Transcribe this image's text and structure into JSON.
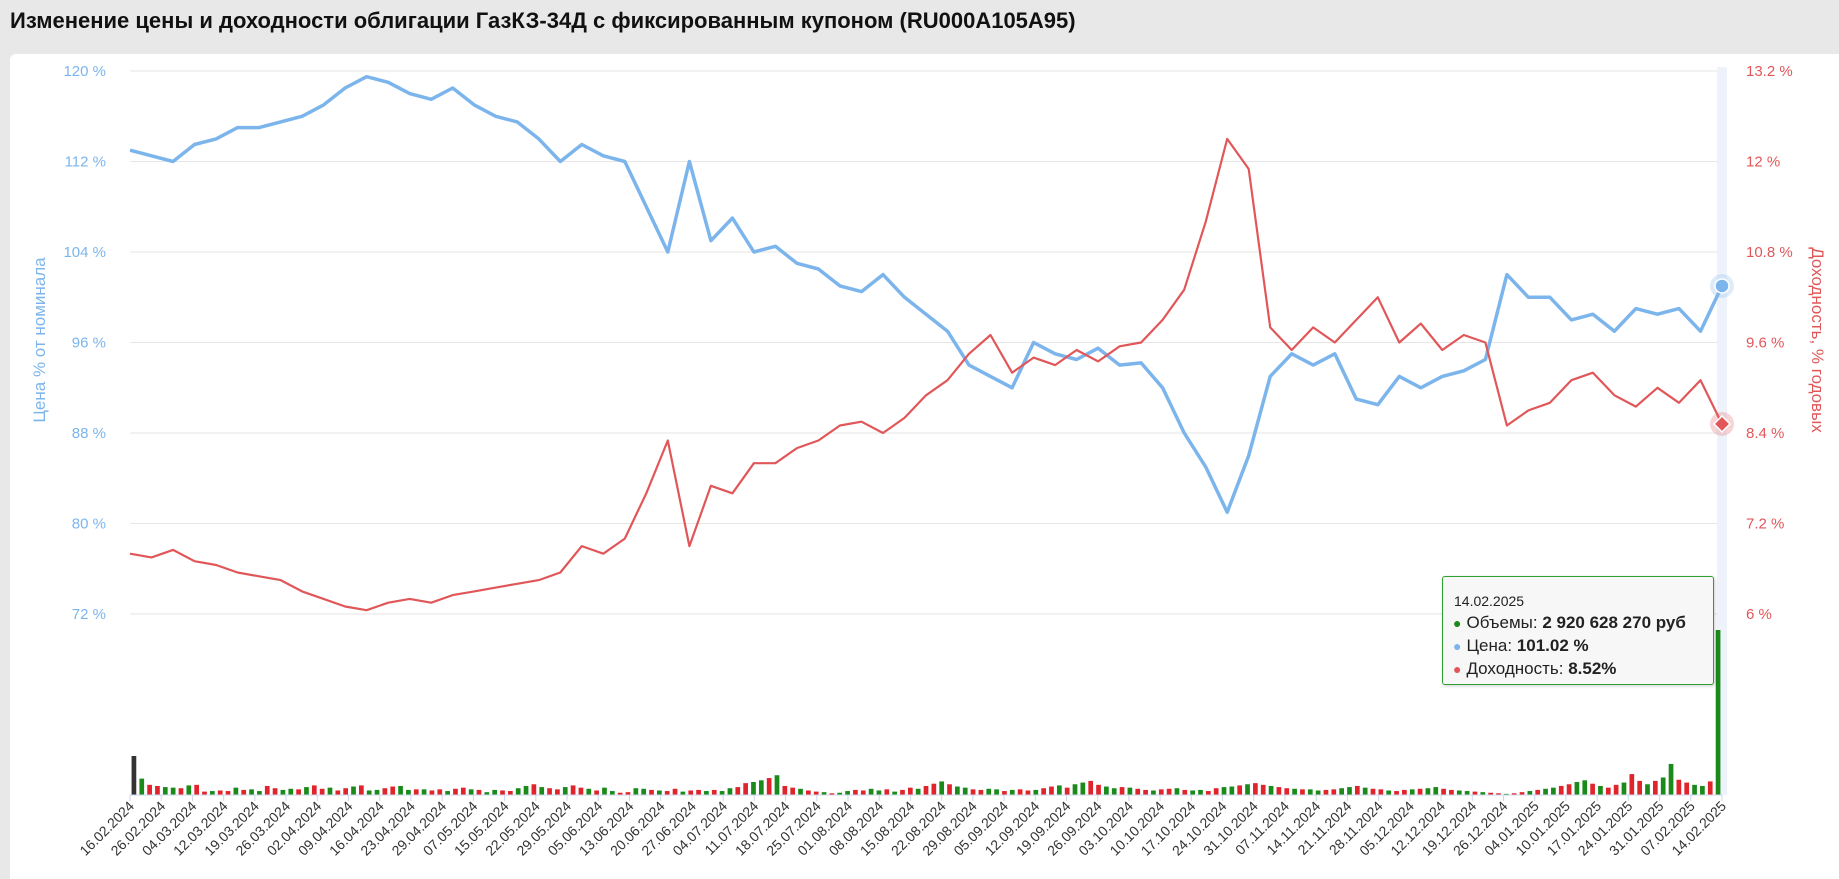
{
  "title": "Изменение цены и доходности облигации ГазКЗ-34Д с фиксированным купоном (RU000A105A95)",
  "colors": {
    "price": "#7cb5ec",
    "yield": "#e15759",
    "volume_up": "#1a8a1a",
    "volume_down": "#e0242c",
    "volume_first": "#333333",
    "tooltip_border": "#2e9e2e"
  },
  "chart_data": {
    "type": "line",
    "y_left": {
      "label": "Цена % от номинала",
      "range": [
        72,
        120
      ],
      "ticks": [
        "72 %",
        "80 %",
        "88 %",
        "96 %",
        "104 %",
        "112 %",
        "120 %"
      ]
    },
    "y_right": {
      "label": "Доходность, % годовых",
      "range": [
        6,
        13.2
      ],
      "ticks": [
        "6 %",
        "7.2 %",
        "8.4 %",
        "9.6 %",
        "10.8 %",
        "12 %",
        "13.2 %"
      ]
    },
    "x_ticks": [
      "16.02.2024",
      "26.02.2024",
      "04.03.2024",
      "12.03.2024",
      "19.03.2024",
      "26.03.2024",
      "02.04.2024",
      "09.04.2024",
      "16.04.2024",
      "23.04.2024",
      "29.04.2024",
      "07.05.2024",
      "15.05.2024",
      "22.05.2024",
      "29.05.2024",
      "05.06.2024",
      "13.06.2024",
      "20.06.2024",
      "27.06.2024",
      "04.07.2024",
      "11.07.2024",
      "18.07.2024",
      "25.07.2024",
      "01.08.2024",
      "08.08.2024",
      "15.08.2024",
      "22.08.2024",
      "29.08.2024",
      "05.09.2024",
      "12.09.2024",
      "19.09.2024",
      "26.09.2024",
      "03.10.2024",
      "10.10.2024",
      "17.10.2024",
      "24.10.2024",
      "31.10.2024",
      "07.11.2024",
      "14.11.2024",
      "21.11.2024",
      "28.11.2024",
      "05.12.2024",
      "12.12.2024",
      "19.12.2024",
      "26.12.2024",
      "04.01.2025",
      "10.01.2025",
      "17.01.2025",
      "24.01.2025",
      "31.01.2025",
      "07.02.2025",
      "14.02.2025"
    ],
    "series": [
      {
        "name": "Цена",
        "axis": "left",
        "values": [
          113,
          112.5,
          112,
          113.5,
          114,
          115,
          115,
          115.5,
          116,
          117,
          118.5,
          119.5,
          119,
          118,
          117.5,
          118.5,
          117,
          116,
          115.5,
          114,
          112,
          113.5,
          112.5,
          112,
          108,
          104,
          112,
          105,
          107,
          104,
          104.5,
          103,
          102.5,
          101,
          100.5,
          102,
          100,
          98.5,
          97,
          94,
          93,
          92,
          96,
          95,
          94.5,
          95.5,
          94,
          94.2,
          92,
          88,
          85,
          81,
          86,
          93,
          95,
          94,
          95,
          91,
          90.5,
          93,
          92,
          93,
          93.5,
          94.5,
          102,
          100,
          100,
          98,
          98.5,
          97,
          99,
          98.5,
          99,
          97,
          101
        ]
      },
      {
        "name": "Доходность",
        "axis": "right",
        "values": [
          6.8,
          6.75,
          6.85,
          6.7,
          6.65,
          6.55,
          6.5,
          6.45,
          6.3,
          6.2,
          6.1,
          6.05,
          6.15,
          6.2,
          6.15,
          6.25,
          6.3,
          6.35,
          6.4,
          6.45,
          6.55,
          6.9,
          6.8,
          7.0,
          7.6,
          8.3,
          6.9,
          7.7,
          7.6,
          8.0,
          8.0,
          8.2,
          8.3,
          8.5,
          8.55,
          8.4,
          8.6,
          8.9,
          9.1,
          9.45,
          9.7,
          9.2,
          9.4,
          9.3,
          9.5,
          9.35,
          9.55,
          9.6,
          9.9,
          10.3,
          11.2,
          12.3,
          11.9,
          9.8,
          9.5,
          9.8,
          9.6,
          9.9,
          10.2,
          9.6,
          9.85,
          9.5,
          9.7,
          9.6,
          8.5,
          8.7,
          8.8,
          9.1,
          9.2,
          8.9,
          8.75,
          9.0,
          8.8,
          9.1,
          8.52
        ]
      }
    ],
    "volume_bars": [
      6.9,
      2.9,
      1.8,
      1.6,
      1.4,
      1.3,
      1.2,
      1.7,
      1.8,
      0.6,
      0.7,
      0.8,
      0.7,
      1.3,
      0.9,
      1.0,
      0.7,
      1.6,
      1.2,
      0.9,
      1.1,
      1.0,
      1.4,
      1.7,
      1.1,
      1.3,
      0.8,
      1.2,
      1.5,
      1.7,
      0.8,
      0.9,
      1.2,
      1.5,
      1.6,
      0.9,
      1.0,
      1.0,
      0.8,
      1.0,
      0.7,
      1.1,
      1.3,
      1.0,
      0.9,
      0.5,
      0.9,
      0.8,
      0.7,
      1.2,
      1.6,
      1.9,
      1.4,
      1.2,
      1.0,
      1.4,
      1.7,
      1.3,
      1.1,
      0.8,
      1.3,
      0.7,
      0.4,
      0.5,
      1.2,
      1.1,
      0.9,
      0.8,
      0.7,
      1.1,
      0.6,
      0.8,
      0.9,
      0.7,
      0.9,
      0.7,
      1.2,
      1.4,
      2.1,
      2.3,
      2.6,
      3.0,
      3.5,
      1.6,
      1.3,
      1.1,
      0.8,
      0.6,
      0.5,
      0.3,
      0.4,
      0.7,
      0.9,
      0.8,
      1.1,
      0.8,
      1.0,
      0.6,
      0.9,
      1.3,
      1.1,
      1.6,
      2.0,
      2.4,
      1.9,
      1.5,
      1.3,
      1.0,
      0.9,
      1.1,
      1.0,
      0.7,
      0.9,
      1.0,
      0.8,
      0.9,
      1.2,
      1.5,
      1.7,
      1.3,
      1.9,
      2.2,
      2.5,
      1.8,
      1.5,
      1.2,
      1.4,
      1.3,
      1.1,
      0.9,
      0.8,
      1.0,
      1.1,
      1.2,
      0.9,
      0.8,
      0.9,
      0.7,
      1.2,
      1.4,
      1.5,
      1.7,
      1.9,
      2.1,
      1.8,
      1.6,
      1.4,
      1.2,
      1.1,
      1.0,
      1.0,
      0.8,
      0.9,
      1.0,
      1.2,
      1.4,
      1.6,
      1.3,
      1.1,
      1.0,
      0.8,
      0.7,
      0.9,
      1.0,
      1.1,
      1.2,
      1.4,
      1.1,
      0.9,
      0.8,
      0.7,
      0.6,
      0.5,
      0.4,
      0.3,
      0.2,
      0.3,
      0.5,
      0.7,
      0.9,
      1.1,
      1.3,
      1.6,
      1.9,
      2.3,
      2.6,
      2.0,
      1.6,
      1.3,
      1.8,
      2.2,
      3.7,
      2.5,
      1.9,
      2.5,
      3.1,
      5.5,
      2.7,
      2.2,
      1.8,
      1.6,
      2.4,
      29.2
    ],
    "volume_last_rub": 2920628270
  },
  "tooltip": {
    "date": "14.02.2025",
    "volume_label": "Объемы:",
    "volume_value": "2 920 628 270 руб",
    "price_label": "Цена:",
    "price_value": "101.02 %",
    "yield_label": "Доходность:",
    "yield_value": "8.52%"
  }
}
